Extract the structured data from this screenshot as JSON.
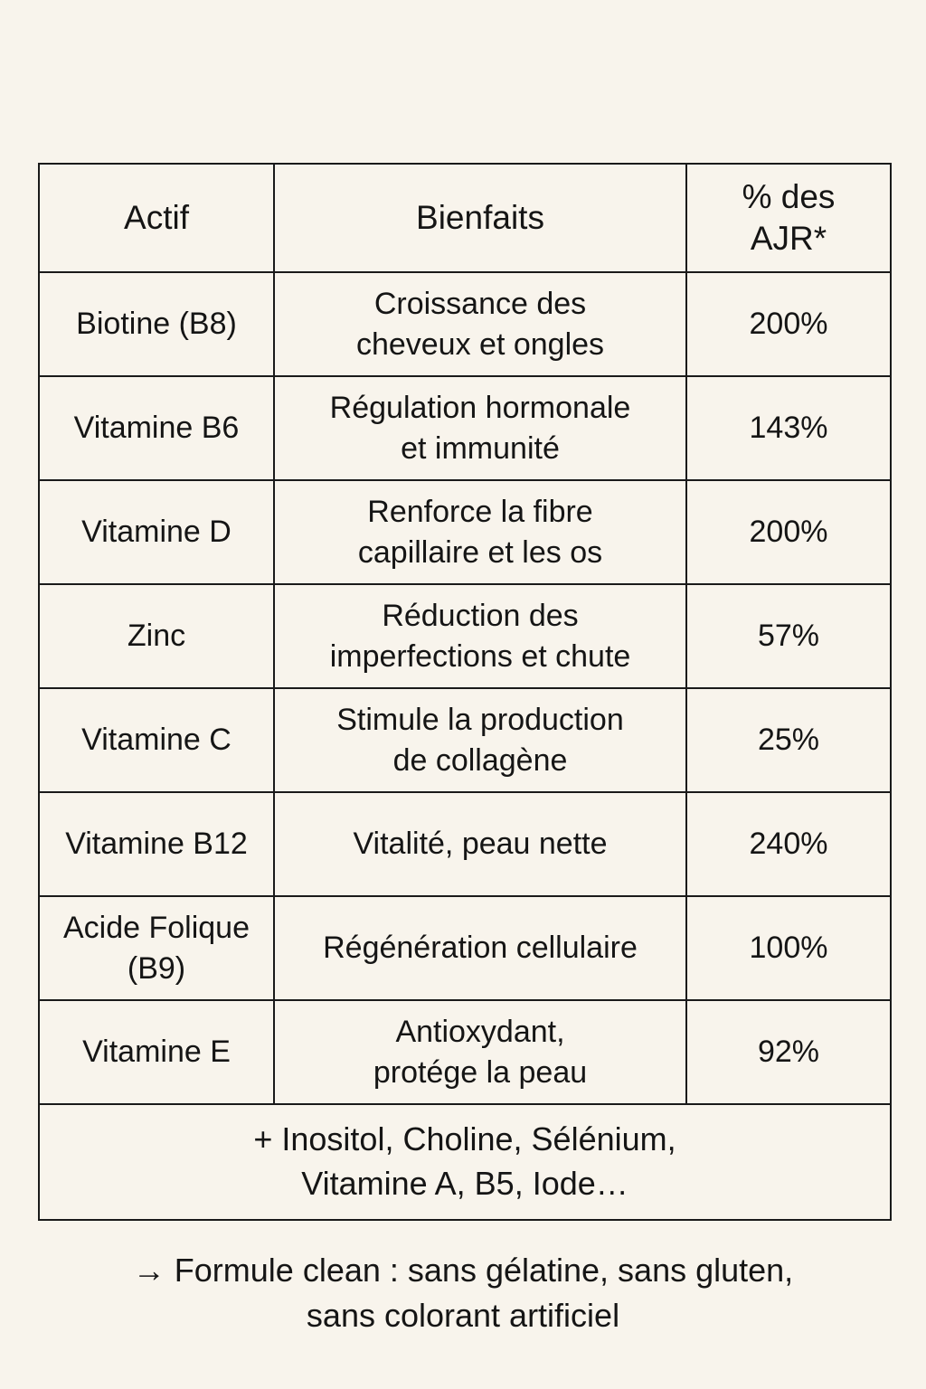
{
  "page": {
    "background_color": "#f8f4ec",
    "text_color": "#151515",
    "border_color": "#1a1a1a"
  },
  "table": {
    "headers": {
      "actif": "Actif",
      "bienfaits": "Bienfaits",
      "ajr": "% des\nAJR*"
    },
    "rows": [
      {
        "actif": "Biotine (B8)",
        "bienfaits": "Croissance des\ncheveux et ongles",
        "ajr": "200%"
      },
      {
        "actif": "Vitamine B6",
        "bienfaits": "Régulation hormonale\net immunité",
        "ajr": "143%"
      },
      {
        "actif": "Vitamine D",
        "bienfaits": "Renforce la fibre\ncapillaire et les os",
        "ajr": "200%"
      },
      {
        "actif": "Zinc",
        "bienfaits": "Réduction des\nimperfections et chute",
        "ajr": "57%"
      },
      {
        "actif": "Vitamine C",
        "bienfaits": "Stimule la production\nde collagène",
        "ajr": "25%"
      },
      {
        "actif": "Vitamine B12",
        "bienfaits": "Vitalité, peau nette",
        "ajr": "240%"
      },
      {
        "actif": "Acide Folique\n(B9)",
        "bienfaits": "Régénération cellulaire",
        "ajr": "100%"
      },
      {
        "actif": "Vitamine E",
        "bienfaits": "Antioxydant,\nprotége la peau",
        "ajr": "92%"
      }
    ],
    "footer": "+ Inositol, Choline, Sélénium,\nVitamine A, B5, Iode…"
  },
  "note": {
    "arrow_icon": "→",
    "line1": "→ Formule clean : sans gélatine, sans gluten,",
    "line2": "sans colorant artificiel"
  },
  "chart_data": {
    "type": "table",
    "title": "",
    "columns": [
      "Actif",
      "Bienfaits",
      "% des AJR*"
    ],
    "rows": [
      [
        "Biotine (B8)",
        "Croissance des cheveux et ongles",
        "200%"
      ],
      [
        "Vitamine B6",
        "Régulation hormonale et immunité",
        "143%"
      ],
      [
        "Vitamine D",
        "Renforce la fibre capillaire et les os",
        "200%"
      ],
      [
        "Zinc",
        "Réduction des imperfections et chute",
        "57%"
      ],
      [
        "Vitamine C",
        "Stimule la production de collagène",
        "25%"
      ],
      [
        "Vitamine B12",
        "Vitalité, peau nette",
        "240%"
      ],
      [
        "Acide Folique (B9)",
        "Régénération cellulaire",
        "100%"
      ],
      [
        "Vitamine E",
        "Antioxydant, protége la peau",
        "92%"
      ]
    ],
    "ajr_values_percent": [
      200,
      143,
      200,
      57,
      25,
      240,
      100,
      92
    ],
    "footer_note": "+ Inositol, Choline, Sélénium, Vitamine A, B5, Iode…",
    "annotation": "→ Formule clean : sans gélatine, sans gluten, sans colorant artificiel"
  }
}
